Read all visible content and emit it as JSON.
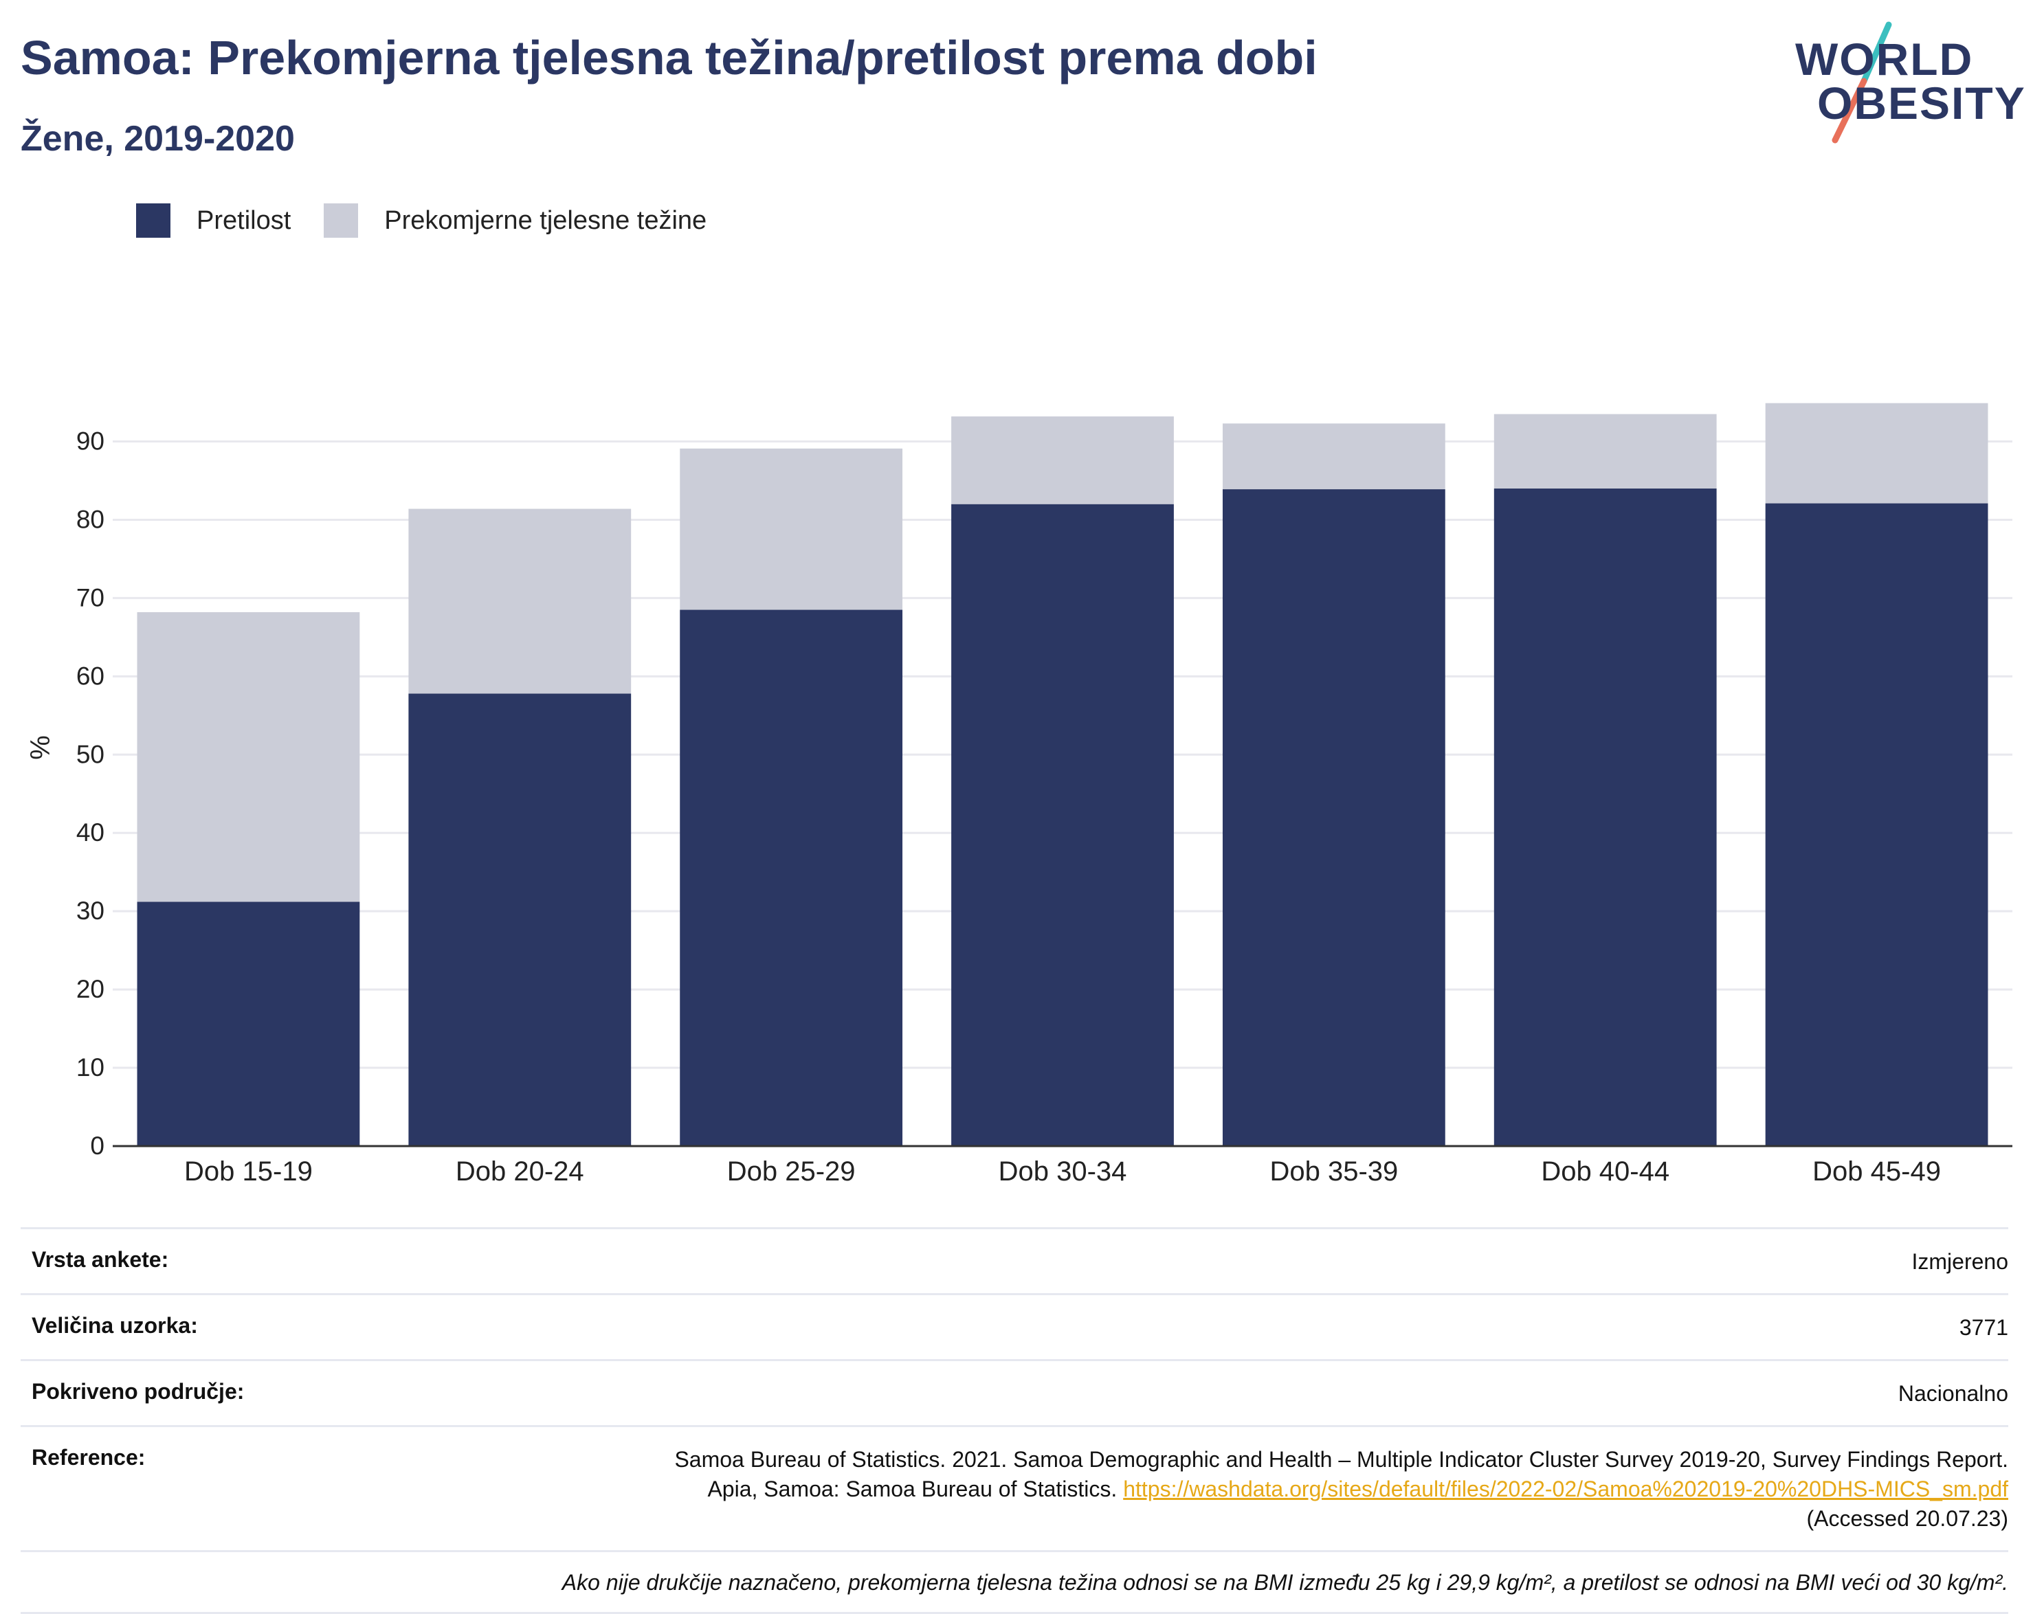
{
  "header": {
    "title": "Samoa: Prekomjerna tjelesna težina/pretilost prema dobi",
    "subtitle": "Žene, 2019-2020"
  },
  "logo": {
    "line1": "WORLD",
    "line2": "OBESITY",
    "colors": {
      "text": "#2b3763",
      "slash_top": "#3bbfbf",
      "slash_bottom": "#e8705a"
    }
  },
  "legend": [
    {
      "label": "Pretilost",
      "color": "#2b3763"
    },
    {
      "label": "Prekomjerne tjelesne težine",
      "color": "#cbcdd8"
    }
  ],
  "chart_data": {
    "type": "bar",
    "stacked": true,
    "categories": [
      "Dob 15-19",
      "Dob 20-24",
      "Dob 25-29",
      "Dob 30-34",
      "Dob 35-39",
      "Dob 40-44",
      "Dob 45-49"
    ],
    "series": [
      {
        "name": "Pretilost",
        "color": "#2b3763",
        "values": [
          31.2,
          57.8,
          68.5,
          82.0,
          83.9,
          84.0,
          82.1
        ]
      },
      {
        "name": "Prekomjerne tjelesne težine",
        "color": "#cbcdd8",
        "values": [
          37.0,
          23.6,
          20.6,
          11.2,
          8.4,
          9.5,
          12.8
        ]
      }
    ],
    "ylabel": "%",
    "xlabel": "",
    "yticks": [
      0,
      10,
      20,
      30,
      40,
      50,
      60,
      70,
      80,
      90
    ],
    "ylim": [
      0,
      99
    ],
    "grid": true,
    "legend_position": "top-left"
  },
  "info": {
    "survey_type_label": "Vrsta ankete:",
    "survey_type_value": "Izmjereno",
    "sample_size_label": "Veličina uzorka:",
    "sample_size_value": "3771",
    "coverage_label": "Pokriveno područje:",
    "coverage_value": "Nacionalno",
    "reference_label": "Reference:",
    "reference_text": "Samoa Bureau of Statistics. 2021. Samoa Demographic and Health – Multiple Indicator Cluster Survey 2019-20, Survey Findings Report. Apia, Samoa: Samoa Bureau of Statistics.",
    "reference_link": "https://washdata.org/sites/default/files/2022-02/Samoa%202019-20%20DHS-MICS_sm.pdf",
    "reference_accessed": "(Accessed 20.07.23)",
    "note": "Ako nije drukčije naznačeno, prekomjerna tjelesna težina odnosi se na BMI između 25 kg i 29,9 kg/m², a pretilost se odnosi na BMI veći od 30 kg/m²."
  }
}
